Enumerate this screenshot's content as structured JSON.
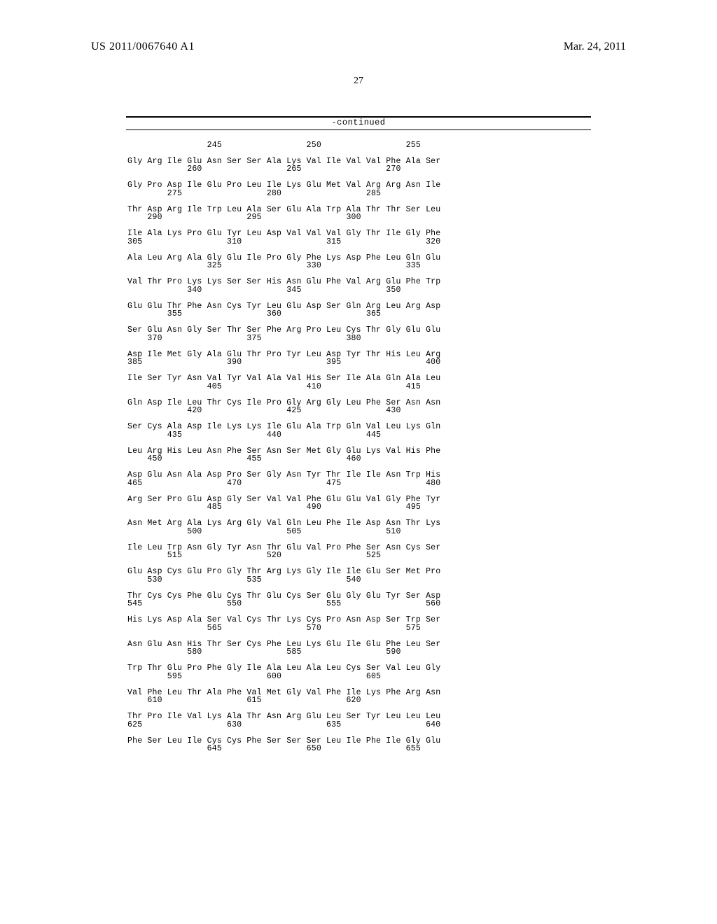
{
  "header": {
    "publication_number": "US 2011/0067640 A1",
    "publication_date": "Mar. 24, 2011"
  },
  "page_number": "27",
  "continued_label": "-continued",
  "sequence_text": "                245                 250                 255\n\nGly Arg Ile Glu Asn Ser Ser Ala Lys Val Ile Val Val Phe Ala Ser\n            260                 265                 270\n\nGly Pro Asp Ile Glu Pro Leu Ile Lys Glu Met Val Arg Arg Asn Ile\n        275                 280                 285\n\nThr Asp Arg Ile Trp Leu Ala Ser Glu Ala Trp Ala Thr Thr Ser Leu\n    290                 295                 300\n\nIle Ala Lys Pro Glu Tyr Leu Asp Val Val Val Gly Thr Ile Gly Phe\n305                 310                 315                 320\n\nAla Leu Arg Ala Gly Glu Ile Pro Gly Phe Lys Asp Phe Leu Gln Glu\n                325                 330                 335\n\nVal Thr Pro Lys Lys Ser Ser His Asn Glu Phe Val Arg Glu Phe Trp\n            340                 345                 350\n\nGlu Glu Thr Phe Asn Cys Tyr Leu Glu Asp Ser Gln Arg Leu Arg Asp\n        355                 360                 365\n\nSer Glu Asn Gly Ser Thr Ser Phe Arg Pro Leu Cys Thr Gly Glu Glu\n    370                 375                 380\n\nAsp Ile Met Gly Ala Glu Thr Pro Tyr Leu Asp Tyr Thr His Leu Arg\n385                 390                 395                 400\n\nIle Ser Tyr Asn Val Tyr Val Ala Val His Ser Ile Ala Gln Ala Leu\n                405                 410                 415\n\nGln Asp Ile Leu Thr Cys Ile Pro Gly Arg Gly Leu Phe Ser Asn Asn\n            420                 425                 430\n\nSer Cys Ala Asp Ile Lys Lys Ile Glu Ala Trp Gln Val Leu Lys Gln\n        435                 440                 445\n\nLeu Arg His Leu Asn Phe Ser Asn Ser Met Gly Glu Lys Val His Phe\n    450                 455                 460\n\nAsp Glu Asn Ala Asp Pro Ser Gly Asn Tyr Thr Ile Ile Asn Trp His\n465                 470                 475                 480\n\nArg Ser Pro Glu Asp Gly Ser Val Val Phe Glu Glu Val Gly Phe Tyr\n                485                 490                 495\n\nAsn Met Arg Ala Lys Arg Gly Val Gln Leu Phe Ile Asp Asn Thr Lys\n            500                 505                 510\n\nIle Leu Trp Asn Gly Tyr Asn Thr Glu Val Pro Phe Ser Asn Cys Ser\n        515                 520                 525\n\nGlu Asp Cys Glu Pro Gly Thr Arg Lys Gly Ile Ile Glu Ser Met Pro\n    530                 535                 540\n\nThr Cys Cys Phe Glu Cys Thr Glu Cys Ser Glu Gly Glu Tyr Ser Asp\n545                 550                 555                 560\n\nHis Lys Asp Ala Ser Val Cys Thr Lys Cys Pro Asn Asp Ser Trp Ser\n                565                 570                 575\n\nAsn Glu Asn His Thr Ser Cys Phe Leu Lys Glu Ile Glu Phe Leu Ser\n            580                 585                 590\n\nTrp Thr Glu Pro Phe Gly Ile Ala Leu Ala Leu Cys Ser Val Leu Gly\n        595                 600                 605\n\nVal Phe Leu Thr Ala Phe Val Met Gly Val Phe Ile Lys Phe Arg Asn\n    610                 615                 620\n\nThr Pro Ile Val Lys Ala Thr Asn Arg Glu Leu Ser Tyr Leu Leu Leu\n625                 630                 635                 640\n\nPhe Ser Leu Ile Cys Cys Phe Ser Ser Ser Leu Ile Phe Ile Gly Glu\n                645                 650                 655"
}
